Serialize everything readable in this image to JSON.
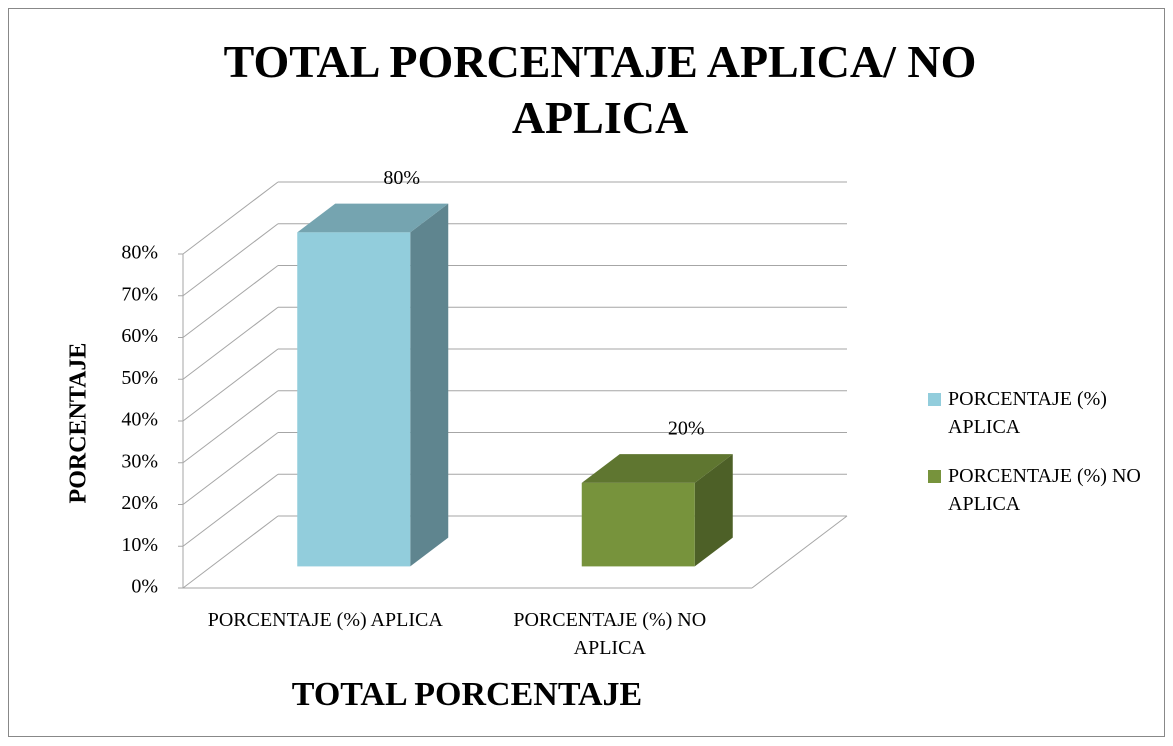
{
  "chart_data": {
    "type": "bar3d",
    "title": "TOTAL PORCENTAJE APLICA/ NO APLICA",
    "x_label": "TOTAL PORCENTAJE",
    "y_label": "PORCENTAJE",
    "categories": [
      "PORCENTAJE (%) APLICA",
      "PORCENTAJE (%) NO APLICA"
    ],
    "values": [
      80,
      20
    ],
    "value_labels": [
      "80%",
      "20%"
    ],
    "colors": [
      "#92cddc",
      "#77933c"
    ],
    "ylim": [
      0,
      80
    ],
    "yticks": [
      {
        "value": 0,
        "label": "0%"
      },
      {
        "value": 10,
        "label": "10%"
      },
      {
        "value": 20,
        "label": "20%"
      },
      {
        "value": 30,
        "label": "30%"
      },
      {
        "value": 40,
        "label": "40%"
      },
      {
        "value": 50,
        "label": "50%"
      },
      {
        "value": 60,
        "label": "60%"
      },
      {
        "value": 70,
        "label": "70%"
      },
      {
        "value": 80,
        "label": "80%"
      }
    ],
    "grid": true,
    "legend": "right"
  }
}
